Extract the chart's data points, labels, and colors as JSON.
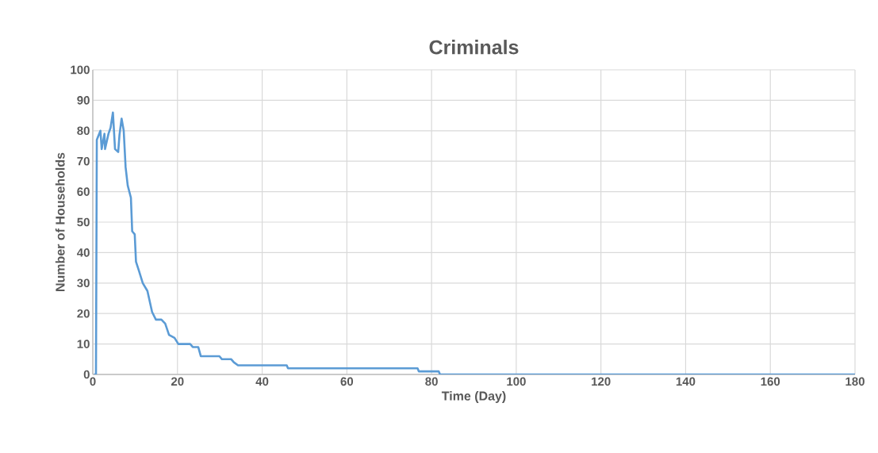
{
  "chart_data": {
    "type": "line",
    "title": "Criminals",
    "xlabel": "Time (Day)",
    "ylabel": "Number of Households",
    "xlim": [
      0,
      180
    ],
    "ylim": [
      0,
      100
    ],
    "xticks": [
      0,
      20,
      40,
      60,
      80,
      100,
      120,
      140,
      160,
      180
    ],
    "yticks": [
      0,
      10,
      20,
      30,
      40,
      50,
      60,
      70,
      80,
      90,
      100
    ],
    "grid": true,
    "marker": "none",
    "line_style": "solid",
    "series": [
      {
        "color": "#5b9bd5",
        "x": [
          0.3,
          0.75,
          0.95,
          1.8,
          2.1,
          2.75,
          2.9,
          3.7,
          4.2,
          4.75,
          5.25,
          6.0,
          6.3,
          6.8,
          7.3,
          7.75,
          8.25,
          9.0,
          9.3,
          9.9,
          10.2,
          10.9,
          11.8,
          12.9,
          14.0,
          14.9,
          16.2,
          17.1,
          18.0,
          19.3,
          20.2,
          23.0,
          23.6,
          24.9,
          25.5,
          29.9,
          30.5,
          32.7,
          33.3,
          34.3,
          45.8,
          46.1,
          76.7,
          77.0,
          81.7,
          82.0,
          180
        ],
        "values": [
          0,
          0,
          77,
          80,
          74,
          79,
          74,
          79,
          81,
          86,
          74,
          73,
          78.6,
          84,
          80,
          68,
          62,
          58,
          47,
          46,
          37,
          34,
          30,
          27.4,
          20.5,
          18,
          18,
          16.7,
          13,
          12,
          10,
          10,
          9,
          9,
          6,
          6,
          5,
          5,
          4,
          3,
          3,
          2,
          2,
          1,
          1,
          0,
          0
        ]
      }
    ]
  }
}
